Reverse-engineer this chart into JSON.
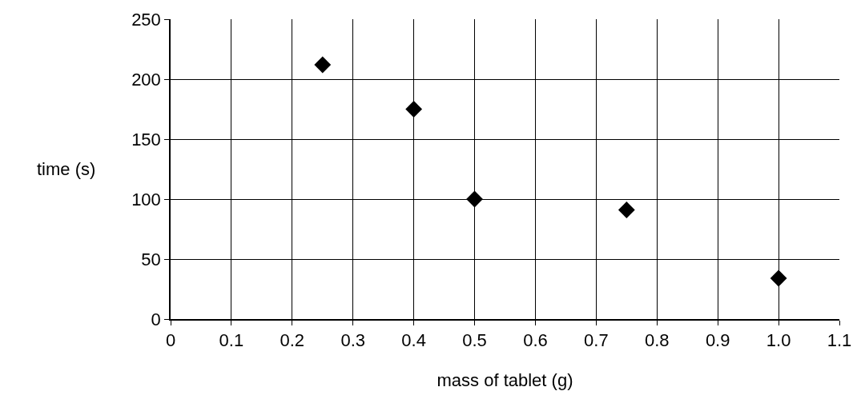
{
  "chart_data": {
    "type": "scatter",
    "xlabel": "mass of tablet (g)",
    "ylabel": "time (s)",
    "x": [
      0.25,
      0.4,
      0.5,
      0.75,
      1.0
    ],
    "values": [
      212,
      175,
      100,
      91,
      34
    ],
    "color": "#000000",
    "marker": "diamond",
    "xlim": [
      0,
      1.1
    ],
    "xticks": [
      0,
      0.1,
      0.2,
      0.3,
      0.4,
      0.5,
      0.6,
      0.7,
      0.8,
      0.9,
      {
        "value": 1.0,
        "label": "1.0"
      },
      1.1
    ],
    "ylim": [
      0,
      250
    ],
    "yticks": [
      0,
      50,
      100,
      150,
      200,
      250
    ],
    "grid": true,
    "legend": false
  }
}
